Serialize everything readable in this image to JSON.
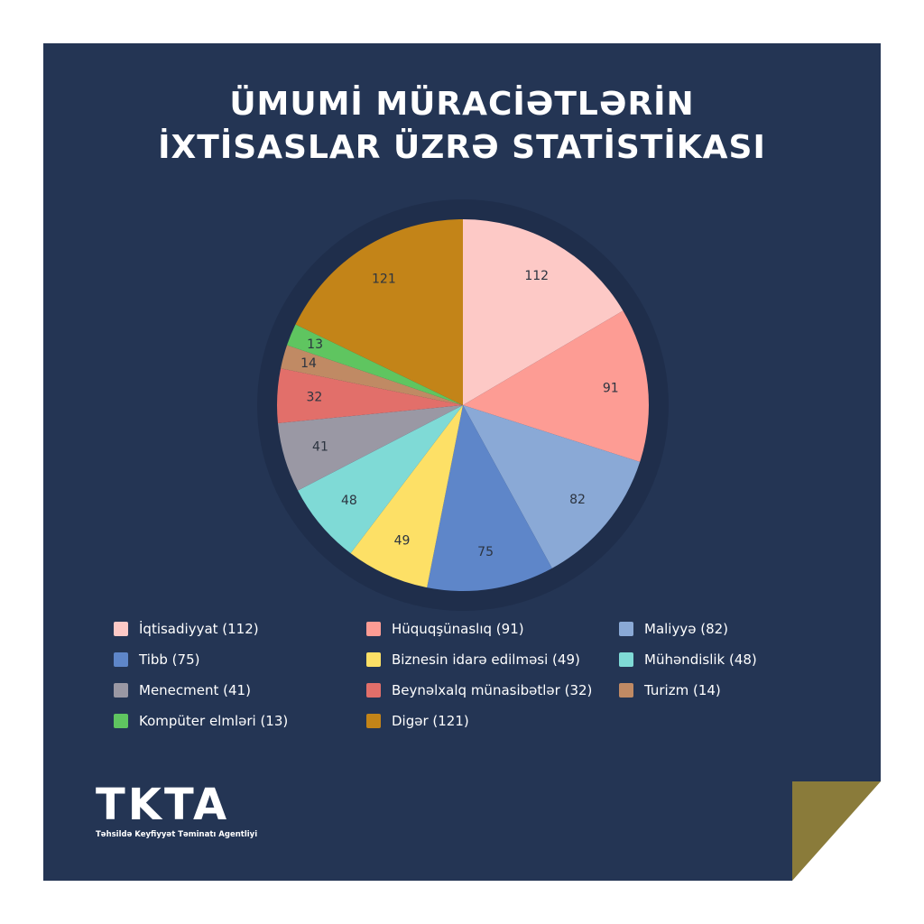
{
  "title": {
    "line1": "ÜMUMİ MÜRACİƏTLƏRİN",
    "line2": "İXTİSASLAR ÜZRƏ STATİSTİKASI"
  },
  "chart_data": {
    "type": "pie",
    "title": "ÜMUMİ MÜRACİƏTLƏRİN İXTİSASLAR ÜZRƏ STATİSTİKASI",
    "categories": [
      "İqtisadiyyat",
      "Hüquqşünaslıq",
      "Maliyyə",
      "Tibb",
      "Biznesin idarə edilməsi",
      "Mühəndislik",
      "Menecment",
      "Beynəlxalq münasibətlər",
      "Turizm",
      "Kompüter elmləri",
      "Digər"
    ],
    "values": [
      112,
      91,
      82,
      75,
      49,
      48,
      41,
      32,
      14,
      13,
      121
    ],
    "colors": [
      "#fdc9c6",
      "#fd9c94",
      "#8aa9d6",
      "#5e86c9",
      "#fde066",
      "#7fdad6",
      "#9a98a4",
      "#e26f6a",
      "#c08a64",
      "#5fc560",
      "#c38418"
    ],
    "start_angle_deg": 0,
    "direction": "clockwise",
    "legend_position": "bottom"
  },
  "legend": [
    {
      "label": "İqtisadiyyat (112)",
      "color": "#fdc9c6"
    },
    {
      "label": "Hüquqşünaslıq (91)",
      "color": "#fd9c94"
    },
    {
      "label": "Maliyyə (82)",
      "color": "#8aa9d6"
    },
    {
      "label": "Tibb (75)",
      "color": "#5e86c9"
    },
    {
      "label": "Biznesin idarə edilməsi (49)",
      "color": "#fde066"
    },
    {
      "label": "Mühəndislik (48)",
      "color": "#7fdad6"
    },
    {
      "label": "Menecment (41)",
      "color": "#9a98a4"
    },
    {
      "label": "Beynəlxalq münasibətlər (32)",
      "color": "#e26f6a"
    },
    {
      "label": "Turizm (14)",
      "color": "#c08a64"
    },
    {
      "label": "Kompüter elmləri (13)",
      "color": "#5fc560"
    },
    {
      "label": "Digər (121)",
      "color": "#c38418"
    }
  ],
  "logo": {
    "mark": "TKTA",
    "subtitle": "Təhsildə Keyfiyyət Təminatı Agentliyi"
  },
  "colors": {
    "background": "#243554",
    "text": "#ffffff",
    "label_text": "#2c3440",
    "corner_fold": "#8a7b3a"
  }
}
